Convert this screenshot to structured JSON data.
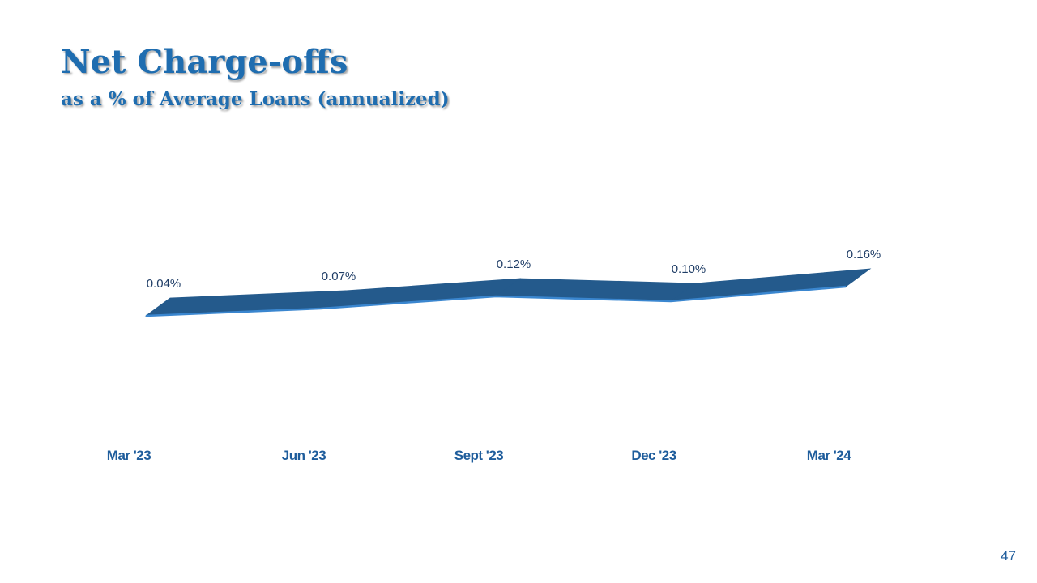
{
  "chart_data": {
    "type": "line",
    "title": "Net Charge-offs",
    "subtitle": "as a % of Average Loans (annualized)",
    "categories": [
      "Mar '23",
      "Jun '23",
      "Sept '23",
      "Dec '23",
      "Mar '24"
    ],
    "values": [
      0.04,
      0.07,
      0.12,
      0.1,
      0.16
    ],
    "value_labels": [
      "0.04%",
      "0.07%",
      "0.12%",
      "0.10%",
      "0.16%"
    ],
    "color": "#245a8c"
  },
  "page_number": "47"
}
